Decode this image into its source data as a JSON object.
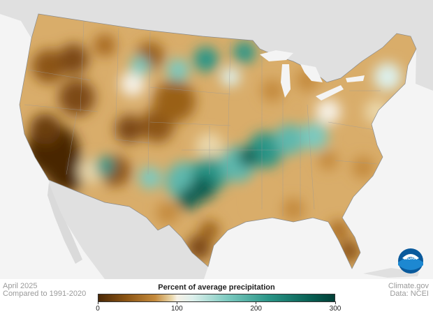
{
  "map": {
    "date": "April 2025",
    "baseline": "Compared to 1991-2020",
    "credit": "Climate.gov",
    "source": "Data: NCEI",
    "logo_text": "NOAA"
  },
  "legend": {
    "title": "Percent of average precipitation",
    "ticks": [
      {
        "label": "0",
        "value": 0
      },
      {
        "label": "100",
        "value": 100
      },
      {
        "label": "200",
        "value": 200
      },
      {
        "label": "300",
        "value": 300
      }
    ],
    "range": [
      0,
      300
    ],
    "colors": {
      "very_dry": "#4a2806",
      "dry": "#a86a22",
      "normal": "#f6f1e6",
      "wet": "#5fb8ad",
      "very_wet": "#023f37"
    }
  }
}
